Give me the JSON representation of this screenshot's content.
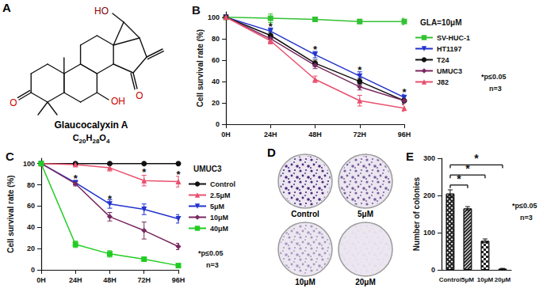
{
  "structure": {
    "panel": "A",
    "name": "Glaucocalyxin A",
    "formula": "C20H28O4",
    "labels": {
      "hydroxyl_top": "HO",
      "hydroxyl": "OH",
      "ketone_a": "O",
      "ketone_d": "O"
    }
  },
  "chart_data": [
    {
      "panel": "B",
      "type": "line",
      "categories": [
        "0H",
        "24H",
        "48H",
        "72H",
        "96H"
      ],
      "ylabel": "Cell survival rate (%)",
      "ylim": [
        0,
        105
      ],
      "yticks": [
        0,
        20,
        40,
        60,
        80,
        100
      ],
      "grid": false,
      "legend": "right",
      "legend_title": "GLA=10μM",
      "series": [
        {
          "name": "SV-HUC-1",
          "color": "#33c233",
          "marker": "square",
          "values": [
            100,
            99,
            98,
            96,
            96
          ],
          "errors": [
            0,
            4,
            2,
            2,
            3
          ]
        },
        {
          "name": "HT1197",
          "color": "#2233cc",
          "marker": "triangle-down",
          "values": [
            100,
            87,
            65,
            45,
            25
          ],
          "errors": [
            0,
            3,
            3,
            4,
            3
          ]
        },
        {
          "name": "T24",
          "color": "#111111",
          "marker": "circle",
          "values": [
            100,
            83,
            57,
            40,
            22
          ],
          "errors": [
            0,
            3,
            3,
            3,
            2
          ]
        },
        {
          "name": "UMUC3",
          "color": "#7a2860",
          "marker": "diamond",
          "values": [
            100,
            80,
            55,
            35,
            22
          ],
          "errors": [
            0,
            3,
            3,
            3,
            3
          ]
        },
        {
          "name": "J82",
          "color": "#e8506e",
          "marker": "triangle",
          "values": [
            100,
            78,
            42,
            22,
            15
          ],
          "errors": [
            0,
            3,
            3,
            5,
            3
          ]
        }
      ],
      "stars": [
        {
          "text": "*",
          "x": "24H",
          "y": 91
        },
        {
          "text": "*",
          "x": "48H",
          "y": 70
        },
        {
          "text": "*",
          "x": "72H",
          "y": 51
        },
        {
          "text": "*",
          "x": "96H",
          "y": 30
        }
      ],
      "annotations": [
        "*p≤0.05",
        "n=3"
      ]
    },
    {
      "panel": "C",
      "type": "line",
      "categories": [
        "0H",
        "24H",
        "48H",
        "72H",
        "96H"
      ],
      "ylabel": "Cell survival rate (%)",
      "ylim": [
        0,
        105
      ],
      "yticks": [
        0,
        20,
        40,
        60,
        80,
        100
      ],
      "grid": false,
      "legend": "right",
      "legend_title": "UMUC3",
      "series": [
        {
          "name": "Control",
          "color": "#111111",
          "marker": "circle",
          "values": [
            100,
            100,
            100,
            100,
            100
          ],
          "errors": [
            0,
            0,
            0,
            0,
            0
          ]
        },
        {
          "name": "2.5μM",
          "color": "#e8506e",
          "marker": "triangle",
          "values": [
            100,
            99,
            96,
            84,
            83
          ],
          "errors": [
            0,
            1,
            3,
            5,
            5
          ]
        },
        {
          "name": "5μM",
          "color": "#2233cc",
          "marker": "triangle-down",
          "values": [
            100,
            82,
            62,
            57,
            48
          ],
          "errors": [
            0,
            2,
            4,
            5,
            4
          ]
        },
        {
          "name": "10μM",
          "color": "#7a2860",
          "marker": "diamond",
          "values": [
            100,
            81,
            50,
            37,
            22
          ],
          "errors": [
            0,
            2,
            4,
            8,
            3
          ]
        },
        {
          "name": "40μM",
          "color": "#22cc22",
          "marker": "square",
          "values": [
            100,
            24,
            15,
            10,
            4
          ],
          "errors": [
            0,
            3,
            3,
            1,
            1
          ]
        }
      ],
      "stars": [
        {
          "text": "*",
          "x": "24H",
          "y": 86
        },
        {
          "text": "*",
          "x": "48H",
          "y": 67
        },
        {
          "text": "*",
          "x": "72H",
          "y": 92
        },
        {
          "text": "*",
          "x": "96H",
          "y": 90
        }
      ],
      "annotations": [
        "*p≤0.05",
        "n=3"
      ]
    },
    {
      "panel": "E",
      "type": "bar",
      "categories": [
        "Control",
        "5μM",
        "10μM",
        "20μM"
      ],
      "values": [
        205,
        165,
        78,
        3
      ],
      "errors": [
        10,
        5,
        5,
        1
      ],
      "color": "#222222",
      "ylabel": "Number of colonies",
      "ylim": [
        0,
        300
      ],
      "yticks": [
        0,
        100,
        200,
        300
      ],
      "grid": false,
      "brackets": [
        {
          "from": "Control",
          "to": "5μM",
          "y": 228,
          "text": "*"
        },
        {
          "from": "Control",
          "to": "10μM",
          "y": 255,
          "text": "*"
        },
        {
          "from": "Control",
          "to": "20μM",
          "y": 282,
          "text": "*"
        }
      ],
      "annotations": [
        "*p≤0.05",
        "n=3"
      ]
    }
  ],
  "colonies": {
    "panel": "D",
    "dishes": [
      "Control",
      "5μM",
      "10μM",
      "20μM"
    ]
  }
}
